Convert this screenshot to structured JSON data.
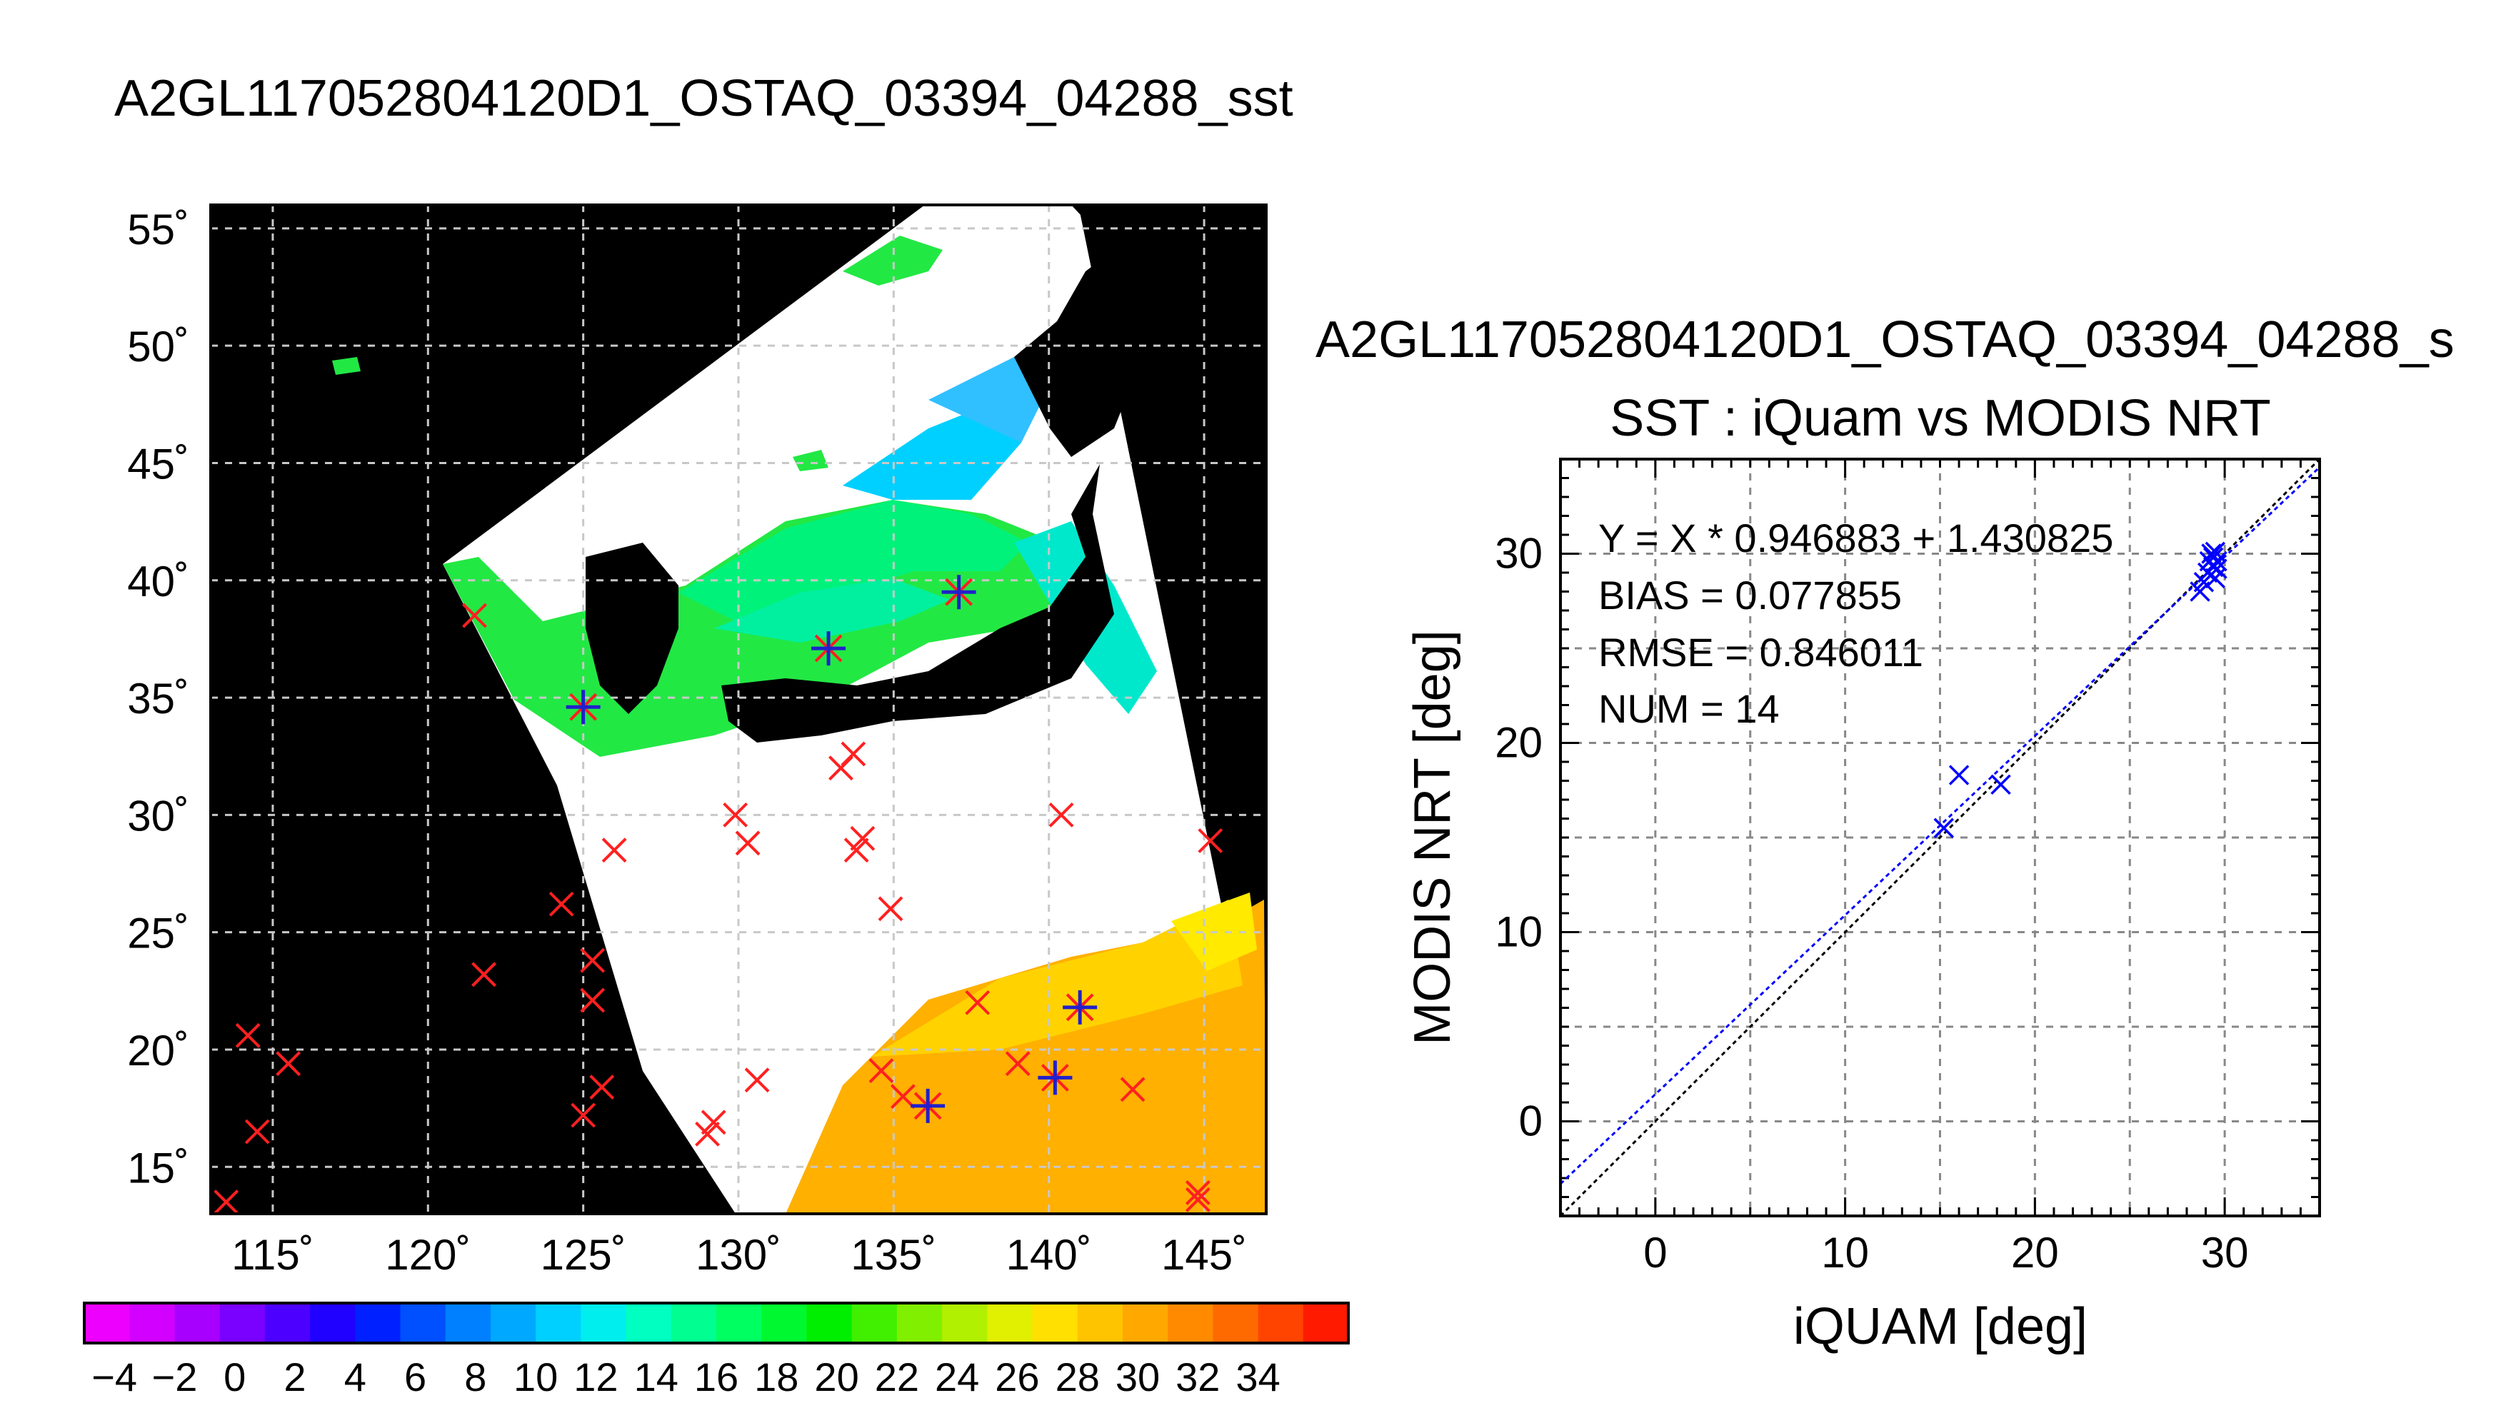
{
  "title_main": "A2GL117052804120D1_OSTAQ_03394_04288_sst",
  "map": {
    "lat_ticks": [
      55,
      50,
      45,
      40,
      35,
      30,
      25,
      20,
      15
    ],
    "lon_ticks": [
      115,
      120,
      125,
      130,
      135,
      140,
      145
    ],
    "lat_range": [
      13,
      56
    ],
    "lon_range": [
      113,
      147
    ],
    "markers_red_x": [
      {
        "lon": 121.5,
        "lat": 38.5
      },
      {
        "lon": 126,
        "lat": 28.5
      },
      {
        "lon": 124.3,
        "lat": 26.2
      },
      {
        "lon": 121.8,
        "lat": 23.2
      },
      {
        "lon": 125.3,
        "lat": 23.8
      },
      {
        "lon": 125.3,
        "lat": 22.1
      },
      {
        "lon": 125.6,
        "lat": 18.4
      },
      {
        "lon": 125,
        "lat": 17.2
      },
      {
        "lon": 114.2,
        "lat": 20.6
      },
      {
        "lon": 114.5,
        "lat": 16.5
      },
      {
        "lon": 115.5,
        "lat": 19.4
      },
      {
        "lon": 113.5,
        "lat": 13.5
      },
      {
        "lon": 129.9,
        "lat": 30
      },
      {
        "lon": 130.3,
        "lat": 28.8
      },
      {
        "lon": 133.3,
        "lat": 32
      },
      {
        "lon": 133.7,
        "lat": 32.6
      },
      {
        "lon": 133.8,
        "lat": 28.5
      },
      {
        "lon": 134,
        "lat": 29
      },
      {
        "lon": 134.9,
        "lat": 26
      },
      {
        "lon": 140.4,
        "lat": 30
      },
      {
        "lon": 145.2,
        "lat": 28.9
      },
      {
        "lon": 129,
        "lat": 16.4
      },
      {
        "lon": 129.2,
        "lat": 16.9
      },
      {
        "lon": 130.6,
        "lat": 18.7
      },
      {
        "lon": 134.6,
        "lat": 19.1
      },
      {
        "lon": 135.3,
        "lat": 18
      },
      {
        "lon": 137.7,
        "lat": 22
      },
      {
        "lon": 139,
        "lat": 19.4
      },
      {
        "lon": 142.7,
        "lat": 18.3
      },
      {
        "lon": 144.8,
        "lat": 13.6
      },
      {
        "lon": 144.8,
        "lat": 13.9
      }
    ],
    "markers_matched": [
      {
        "lon": 125,
        "lat": 34.6
      },
      {
        "lon": 132.9,
        "lat": 37.1
      },
      {
        "lon": 137.1,
        "lat": 39.5
      },
      {
        "lon": 136.1,
        "lat": 17.6
      },
      {
        "lon": 140.2,
        "lat": 18.8
      },
      {
        "lon": 141,
        "lat": 21.8
      }
    ]
  },
  "colorbar": {
    "tick_labels": [
      "−4",
      "−2",
      "0",
      "2",
      "4",
      "6",
      "8",
      "10",
      "12",
      "14",
      "16",
      "18",
      "20",
      "22",
      "24",
      "26",
      "28",
      "30",
      "32",
      "34"
    ],
    "colors": [
      "#ee00ff",
      "#d200ff",
      "#a800ff",
      "#7a00ff",
      "#4c00ff",
      "#2000ff",
      "#0020ff",
      "#0050ff",
      "#0080ff",
      "#00a8ff",
      "#00d0ff",
      "#00eeee",
      "#00ffc0",
      "#00ff90",
      "#00ff60",
      "#00f830",
      "#00ee00",
      "#40f000",
      "#80f000",
      "#b0f000",
      "#e0f000",
      "#ffe000",
      "#ffc400",
      "#ffa800",
      "#ff8a00",
      "#ff6a00",
      "#ff4400",
      "#ff1a00"
    ]
  },
  "scatter": {
    "title_top": "A2GL117052804120D1_OSTAQ_03394_04288_s",
    "subtitle": "SST : iQuam vs MODIS NRT",
    "equation": "Y = X * 0.946883 + 1.430825",
    "bias": "BIAS = 0.077855",
    "rmse": "RMSE = 0.846011",
    "num": "NUM = 14",
    "xlabel": "iQUAM [deg]",
    "ylabel": "MODIS NRT [deg]",
    "x_ticks": [
      "0",
      "10",
      "20",
      "30"
    ],
    "y_ticks": [
      "0",
      "10",
      "20",
      "30"
    ]
  },
  "chart_data": {
    "type": "scatter",
    "title": "SST : iQuam vs MODIS NRT",
    "xlabel": "iQUAM [deg]",
    "ylabel": "MODIS NRT [deg]",
    "xlim": [
      -5,
      35
    ],
    "ylim": [
      -5,
      35
    ],
    "grid": true,
    "series": [
      {
        "points": [
          {
            "x": 15.2,
            "y": 15.5
          },
          {
            "x": 16,
            "y": 18.3
          },
          {
            "x": 18.2,
            "y": 17.8
          },
          {
            "x": 28.7,
            "y": 28
          },
          {
            "x": 28.9,
            "y": 28.5
          },
          {
            "x": 29.1,
            "y": 29
          },
          {
            "x": 29.2,
            "y": 29.6
          },
          {
            "x": 29.3,
            "y": 30
          },
          {
            "x": 29.4,
            "y": 29.8
          },
          {
            "x": 29.4,
            "y": 29.3
          },
          {
            "x": 29.5,
            "y": 28.7
          },
          {
            "x": 29.5,
            "y": 30.1
          },
          {
            "x": 29.6,
            "y": 29.2
          },
          {
            "x": 29.6,
            "y": 29.6
          }
        ]
      }
    ],
    "lines": [
      {
        "slope": 1,
        "intercept": 0,
        "color": "#000000"
      },
      {
        "slope": 0.946883,
        "intercept": 1.430825,
        "color": "#0000ff"
      }
    ]
  }
}
